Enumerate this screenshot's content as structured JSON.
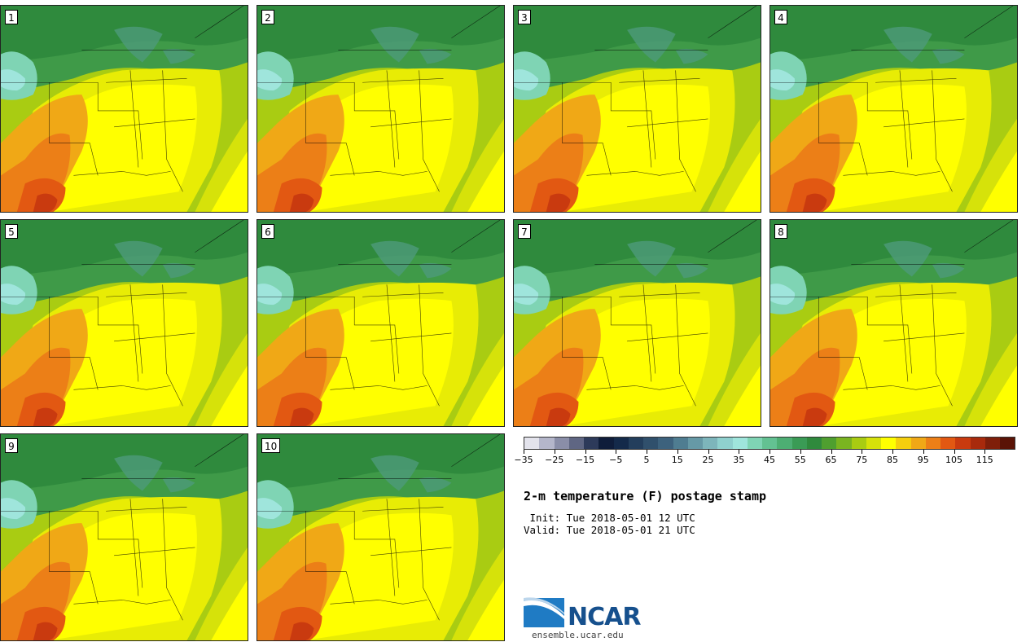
{
  "members": [
    "1",
    "2",
    "3",
    "4",
    "5",
    "6",
    "7",
    "8",
    "9",
    "10"
  ],
  "title": "2-m temperature (F) postage stamp",
  "init": " Init: Tue 2018-05-01 12 UTC",
  "valid": "Valid: Tue 2018-05-01 21 UTC",
  "website": "ensemble.ucar.edu",
  "logo_text": "NCAR",
  "colorbar": {
    "colors": [
      "#e3e3ec",
      "#b4b6ca",
      "#8a8ea8",
      "#5f6683",
      "#2d3a5a",
      "#0f1d3a",
      "#142a4a",
      "#233e5c",
      "#30506c",
      "#3d627d",
      "#4f7d91",
      "#6699a6",
      "#7db5bb",
      "#8fd0ce",
      "#9fe5dc",
      "#7fd4b4",
      "#63c192",
      "#4dae73",
      "#3a9b55",
      "#2f8a3d",
      "#4f9f2f",
      "#7ab420",
      "#a9cc12",
      "#d6e20a",
      "#ffff00",
      "#f5cf0d",
      "#f0a816",
      "#ec7f17",
      "#e25812",
      "#c93a0f",
      "#a82a0c",
      "#7f1f0a",
      "#5a1306"
    ],
    "ticks": [
      "−35",
      "−25",
      "−15",
      "−5",
      "5",
      "15",
      "25",
      "35",
      "45",
      "55",
      "65",
      "75",
      "85",
      "95",
      "105",
      "115"
    ]
  }
}
